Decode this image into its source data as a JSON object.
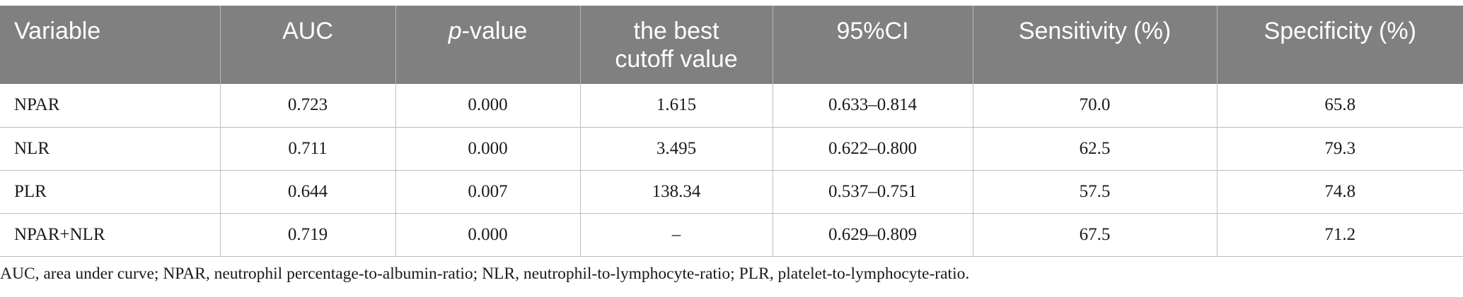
{
  "table": {
    "headers": [
      {
        "label": "Variable"
      },
      {
        "label": "AUC"
      },
      {
        "italic_part": "p",
        "rest": "-value"
      },
      {
        "line1": "the best",
        "line2": "cutoff value"
      },
      {
        "label": "95%CI"
      },
      {
        "label": "Sensitivity (%)"
      },
      {
        "label": "Specificity (%)"
      }
    ],
    "rows": [
      [
        "NPAR",
        "0.723",
        "0.000",
        "1.615",
        "0.633–0.814",
        "70.0",
        "65.8"
      ],
      [
        "NLR",
        "0.711",
        "0.000",
        "3.495",
        "0.622–0.800",
        "62.5",
        "79.3"
      ],
      [
        "PLR",
        "0.644",
        "0.007",
        "138.34",
        "0.537–0.751",
        "57.5",
        "74.8"
      ],
      [
        "NPAR+NLR",
        "0.719",
        "0.000",
        "–",
        "0.629–0.809",
        "67.5",
        "71.2"
      ]
    ]
  },
  "footnote": "AUC, area under curve; NPAR, neutrophil percentage-to-albumin-ratio; NLR, neutrophil-to-lymphocyte-ratio; PLR, platelet-to-lymphocyte-ratio."
}
